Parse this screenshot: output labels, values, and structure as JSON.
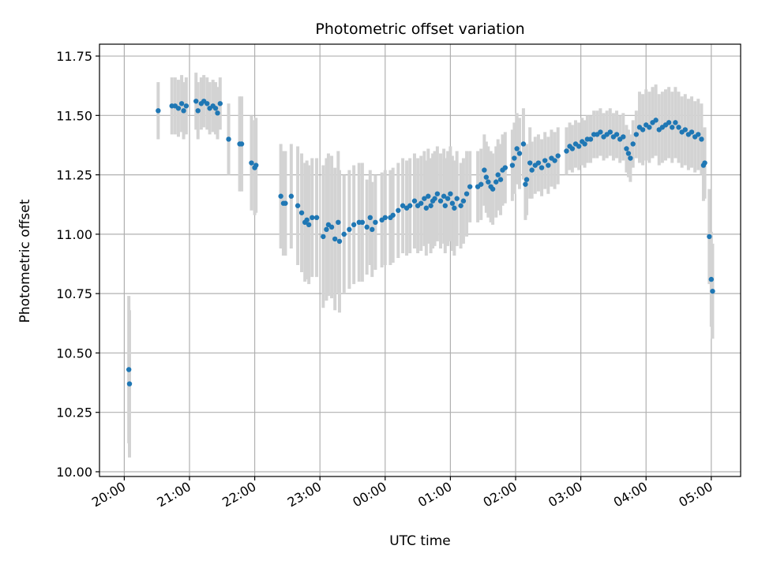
{
  "chart_data": {
    "type": "scatter",
    "title": "Photometric offset variation",
    "xlabel": "UTC time",
    "ylabel": "Photometric offset",
    "x_unit": "hours",
    "xlim": [
      -0.38,
      9.45
    ],
    "ylim": [
      9.98,
      11.8
    ],
    "grid": true,
    "x_ticks": [
      {
        "label": "20:00",
        "value": 0
      },
      {
        "label": "21:00",
        "value": 1
      },
      {
        "label": "22:00",
        "value": 2
      },
      {
        "label": "23:00",
        "value": 3
      },
      {
        "label": "00:00",
        "value": 4
      },
      {
        "label": "01:00",
        "value": 5
      },
      {
        "label": "02:00",
        "value": 6
      },
      {
        "label": "03:00",
        "value": 7
      },
      {
        "label": "04:00",
        "value": 8
      },
      {
        "label": "05:00",
        "value": 9
      }
    ],
    "y_ticks": [
      {
        "label": "10.00",
        "value": 10.0
      },
      {
        "label": "10.25",
        "value": 10.25
      },
      {
        "label": "10.50",
        "value": 10.5
      },
      {
        "label": "10.75",
        "value": 10.75
      },
      {
        "label": "11.00",
        "value": 11.0
      },
      {
        "label": "11.25",
        "value": 11.25
      },
      {
        "label": "11.50",
        "value": 11.5
      },
      {
        "label": "11.75",
        "value": 11.75
      }
    ],
    "colors": {
      "point": "#1f77b4",
      "errorbar": "#d3d3d3",
      "grid": "#b0b0b0"
    },
    "series": [
      {
        "points": [
          [
            0.07,
            10.43,
            0.31
          ],
          [
            0.08,
            10.37,
            0.31
          ],
          [
            0.52,
            11.52,
            0.12
          ],
          [
            0.73,
            11.54,
            0.12
          ],
          [
            0.78,
            11.54,
            0.12
          ],
          [
            0.83,
            11.53,
            0.12
          ],
          [
            0.88,
            11.55,
            0.12
          ],
          [
            0.91,
            11.52,
            0.12
          ],
          [
            0.95,
            11.54,
            0.12
          ],
          [
            1.1,
            11.56,
            0.12
          ],
          [
            1.13,
            11.52,
            0.12
          ],
          [
            1.18,
            11.55,
            0.11
          ],
          [
            1.22,
            11.56,
            0.11
          ],
          [
            1.27,
            11.55,
            0.11
          ],
          [
            1.31,
            11.53,
            0.11
          ],
          [
            1.36,
            11.54,
            0.11
          ],
          [
            1.4,
            11.53,
            0.11
          ],
          [
            1.43,
            11.51,
            0.11
          ],
          [
            1.47,
            11.55,
            0.11
          ],
          [
            1.6,
            11.4,
            0.15
          ],
          [
            1.77,
            11.38,
            0.2
          ],
          [
            1.8,
            11.38,
            0.2
          ],
          [
            1.95,
            11.3,
            0.2
          ],
          [
            2.0,
            11.28,
            0.2
          ],
          [
            2.02,
            11.29,
            0.2
          ],
          [
            2.4,
            11.16,
            0.22
          ],
          [
            2.44,
            11.13,
            0.22
          ],
          [
            2.47,
            11.13,
            0.22
          ],
          [
            2.56,
            11.16,
            0.22
          ],
          [
            2.66,
            11.12,
            0.25
          ],
          [
            2.72,
            11.09,
            0.25
          ],
          [
            2.77,
            11.05,
            0.25
          ],
          [
            2.8,
            11.06,
            0.25
          ],
          [
            2.83,
            11.04,
            0.25
          ],
          [
            2.88,
            11.07,
            0.25
          ],
          [
            2.95,
            11.07,
            0.25
          ],
          [
            3.05,
            10.99,
            0.3
          ],
          [
            3.1,
            11.02,
            0.3
          ],
          [
            3.13,
            11.04,
            0.3
          ],
          [
            3.18,
            11.03,
            0.3
          ],
          [
            3.23,
            10.98,
            0.3
          ],
          [
            3.28,
            11.05,
            0.3
          ],
          [
            3.3,
            10.97,
            0.3
          ],
          [
            3.37,
            11.0,
            0.25
          ],
          [
            3.45,
            11.02,
            0.25
          ],
          [
            3.52,
            11.04,
            0.25
          ],
          [
            3.6,
            11.05,
            0.25
          ],
          [
            3.65,
            11.05,
            0.25
          ],
          [
            3.72,
            11.03,
            0.2
          ],
          [
            3.77,
            11.07,
            0.2
          ],
          [
            3.8,
            11.02,
            0.2
          ],
          [
            3.85,
            11.05,
            0.2
          ],
          [
            3.95,
            11.06,
            0.2
          ],
          [
            4.0,
            11.07,
            0.2
          ],
          [
            4.08,
            11.07,
            0.2
          ],
          [
            4.12,
            11.08,
            0.2
          ],
          [
            4.2,
            11.1,
            0.2
          ],
          [
            4.27,
            11.12,
            0.2
          ],
          [
            4.33,
            11.11,
            0.2
          ],
          [
            4.38,
            11.12,
            0.2
          ],
          [
            4.45,
            11.14,
            0.2
          ],
          [
            4.5,
            11.12,
            0.2
          ],
          [
            4.55,
            11.13,
            0.2
          ],
          [
            4.6,
            11.15,
            0.2
          ],
          [
            4.63,
            11.11,
            0.2
          ],
          [
            4.66,
            11.16,
            0.2
          ],
          [
            4.7,
            11.12,
            0.2
          ],
          [
            4.73,
            11.14,
            0.2
          ],
          [
            4.76,
            11.15,
            0.2
          ],
          [
            4.8,
            11.17,
            0.2
          ],
          [
            4.85,
            11.14,
            0.2
          ],
          [
            4.9,
            11.16,
            0.2
          ],
          [
            4.92,
            11.12,
            0.2
          ],
          [
            4.96,
            11.15,
            0.2
          ],
          [
            5.0,
            11.17,
            0.2
          ],
          [
            5.03,
            11.13,
            0.2
          ],
          [
            5.06,
            11.11,
            0.2
          ],
          [
            5.1,
            11.15,
            0.2
          ],
          [
            5.16,
            11.12,
            0.18
          ],
          [
            5.2,
            11.14,
            0.18
          ],
          [
            5.25,
            11.17,
            0.18
          ],
          [
            5.3,
            11.2,
            0.15
          ],
          [
            5.42,
            11.2,
            0.15
          ],
          [
            5.47,
            11.21,
            0.15
          ],
          [
            5.52,
            11.27,
            0.15
          ],
          [
            5.55,
            11.24,
            0.15
          ],
          [
            5.58,
            11.22,
            0.15
          ],
          [
            5.62,
            11.2,
            0.15
          ],
          [
            5.65,
            11.19,
            0.15
          ],
          [
            5.7,
            11.22,
            0.15
          ],
          [
            5.73,
            11.25,
            0.15
          ],
          [
            5.77,
            11.23,
            0.15
          ],
          [
            5.8,
            11.27,
            0.15
          ],
          [
            5.84,
            11.28,
            0.15
          ],
          [
            5.95,
            11.29,
            0.15
          ],
          [
            5.98,
            11.32,
            0.15
          ],
          [
            6.02,
            11.36,
            0.15
          ],
          [
            6.06,
            11.34,
            0.15
          ],
          [
            6.12,
            11.38,
            0.15
          ],
          [
            6.15,
            11.21,
            0.15
          ],
          [
            6.17,
            11.23,
            0.15
          ],
          [
            6.22,
            11.3,
            0.15
          ],
          [
            6.25,
            11.27,
            0.12
          ],
          [
            6.3,
            11.29,
            0.12
          ],
          [
            6.35,
            11.3,
            0.12
          ],
          [
            6.4,
            11.28,
            0.12
          ],
          [
            6.45,
            11.31,
            0.12
          ],
          [
            6.5,
            11.29,
            0.12
          ],
          [
            6.55,
            11.32,
            0.12
          ],
          [
            6.6,
            11.31,
            0.12
          ],
          [
            6.65,
            11.33,
            0.12
          ],
          [
            6.78,
            11.35,
            0.1
          ],
          [
            6.83,
            11.37,
            0.1
          ],
          [
            6.87,
            11.36,
            0.1
          ],
          [
            6.92,
            11.38,
            0.1
          ],
          [
            6.97,
            11.37,
            0.1
          ],
          [
            7.02,
            11.39,
            0.1
          ],
          [
            7.06,
            11.38,
            0.1
          ],
          [
            7.1,
            11.4,
            0.1
          ],
          [
            7.15,
            11.4,
            0.1
          ],
          [
            7.2,
            11.42,
            0.1
          ],
          [
            7.25,
            11.42,
            0.1
          ],
          [
            7.3,
            11.43,
            0.1
          ],
          [
            7.35,
            11.41,
            0.1
          ],
          [
            7.4,
            11.42,
            0.1
          ],
          [
            7.45,
            11.43,
            0.1
          ],
          [
            7.5,
            11.41,
            0.1
          ],
          [
            7.55,
            11.42,
            0.1
          ],
          [
            7.6,
            11.4,
            0.1
          ],
          [
            7.65,
            11.41,
            0.1
          ],
          [
            7.7,
            11.36,
            0.1
          ],
          [
            7.73,
            11.34,
            0.1
          ],
          [
            7.76,
            11.32,
            0.1
          ],
          [
            7.8,
            11.38,
            0.1
          ],
          [
            7.85,
            11.42,
            0.1
          ],
          [
            7.9,
            11.45,
            0.15
          ],
          [
            7.95,
            11.44,
            0.15
          ],
          [
            8.0,
            11.46,
            0.15
          ],
          [
            8.05,
            11.45,
            0.15
          ],
          [
            8.1,
            11.47,
            0.15
          ],
          [
            8.15,
            11.48,
            0.15
          ],
          [
            8.2,
            11.44,
            0.15
          ],
          [
            8.25,
            11.45,
            0.15
          ],
          [
            8.3,
            11.46,
            0.15
          ],
          [
            8.35,
            11.47,
            0.15
          ],
          [
            8.4,
            11.45,
            0.15
          ],
          [
            8.45,
            11.47,
            0.15
          ],
          [
            8.5,
            11.45,
            0.15
          ],
          [
            8.55,
            11.43,
            0.15
          ],
          [
            8.6,
            11.44,
            0.15
          ],
          [
            8.65,
            11.42,
            0.15
          ],
          [
            8.7,
            11.43,
            0.15
          ],
          [
            8.75,
            11.41,
            0.15
          ],
          [
            8.8,
            11.42,
            0.15
          ],
          [
            8.85,
            11.4,
            0.15
          ],
          [
            8.88,
            11.29,
            0.15
          ],
          [
            8.9,
            11.3,
            0.15
          ],
          [
            8.97,
            10.99,
            0.2
          ],
          [
            9.0,
            10.81,
            0.2
          ],
          [
            9.02,
            10.76,
            0.2
          ]
        ]
      }
    ]
  }
}
